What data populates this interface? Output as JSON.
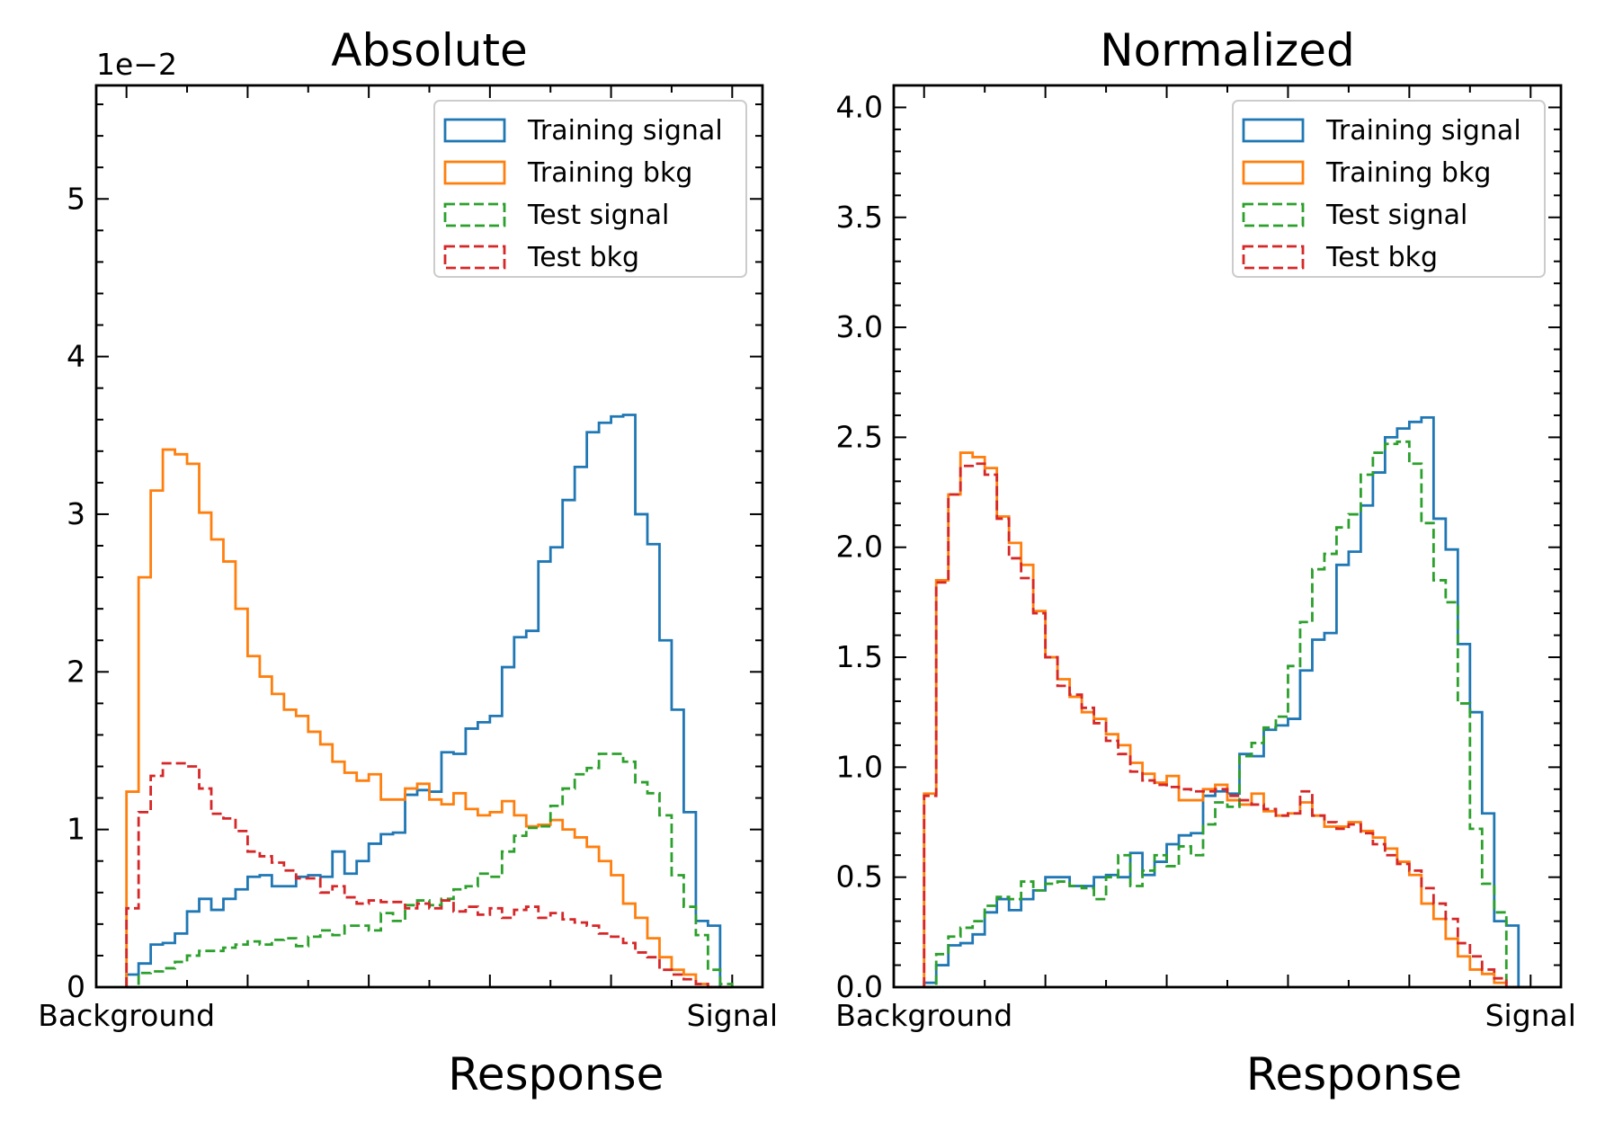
{
  "chart_data": [
    {
      "type": "step",
      "title": "Absolute",
      "xlabel": "Response",
      "xticklabels": [
        "Background",
        "Signal"
      ],
      "ylabel": "",
      "offset_text": "1e−2",
      "yticks": [
        "0",
        "1",
        "2",
        "3",
        "4",
        "5"
      ],
      "ylim": [
        0,
        5.72
      ],
      "xrange": [
        -0.05,
        1.05
      ],
      "nbins": 50,
      "bin_range": [
        0,
        1
      ],
      "legend_position": "top-right",
      "series": [
        {
          "name": "Training signal",
          "color": "#1f77b4",
          "dashed": false,
          "values": [
            0.08,
            0.15,
            0.27,
            0.28,
            0.34,
            0.48,
            0.56,
            0.49,
            0.56,
            0.62,
            0.7,
            0.71,
            0.64,
            0.64,
            0.7,
            0.71,
            0.7,
            0.86,
            0.72,
            0.8,
            0.91,
            0.97,
            0.98,
            1.22,
            1.25,
            1.24,
            1.49,
            1.48,
            1.64,
            1.68,
            1.72,
            2.03,
            2.22,
            2.26,
            2.7,
            2.79,
            3.09,
            3.3,
            3.52,
            3.58,
            3.62,
            3.63,
            3.0,
            2.81,
            2.2,
            1.76,
            1.11,
            0.42,
            0.39,
            0.0
          ]
        },
        {
          "name": "Training bkg",
          "color": "#ff7f0e",
          "dashed": false,
          "values": [
            1.24,
            2.6,
            3.15,
            3.41,
            3.38,
            3.32,
            3.01,
            2.84,
            2.7,
            2.4,
            2.1,
            1.97,
            1.86,
            1.76,
            1.72,
            1.62,
            1.54,
            1.43,
            1.36,
            1.31,
            1.35,
            1.19,
            1.19,
            1.26,
            1.29,
            1.19,
            1.16,
            1.23,
            1.13,
            1.09,
            1.11,
            1.18,
            1.09,
            1.02,
            1.03,
            1.06,
            1.0,
            0.95,
            0.89,
            0.8,
            0.71,
            0.53,
            0.44,
            0.31,
            0.19,
            0.11,
            0.08,
            0.02,
            0.0,
            0.0
          ]
        },
        {
          "name": "Test signal",
          "color": "#2ca02c",
          "dashed": true,
          "values": [
            0.0,
            0.09,
            0.1,
            0.12,
            0.16,
            0.2,
            0.23,
            0.23,
            0.25,
            0.27,
            0.29,
            0.27,
            0.3,
            0.31,
            0.26,
            0.32,
            0.36,
            0.33,
            0.39,
            0.39,
            0.36,
            0.47,
            0.42,
            0.52,
            0.55,
            0.52,
            0.56,
            0.62,
            0.64,
            0.72,
            0.7,
            0.86,
            0.96,
            1.01,
            1.02,
            1.15,
            1.26,
            1.35,
            1.39,
            1.48,
            1.48,
            1.43,
            1.3,
            1.23,
            1.09,
            0.71,
            0.51,
            0.33,
            0.11,
            0.02
          ]
        },
        {
          "name": "Test bkg",
          "color": "#d62728",
          "dashed": true,
          "values": [
            0.5,
            1.11,
            1.34,
            1.42,
            1.42,
            1.4,
            1.26,
            1.1,
            1.07,
            0.99,
            0.86,
            0.83,
            0.79,
            0.74,
            0.69,
            0.69,
            0.6,
            0.64,
            0.57,
            0.53,
            0.55,
            0.54,
            0.54,
            0.5,
            0.53,
            0.5,
            0.55,
            0.48,
            0.51,
            0.46,
            0.5,
            0.44,
            0.49,
            0.51,
            0.44,
            0.47,
            0.43,
            0.41,
            0.39,
            0.34,
            0.32,
            0.28,
            0.22,
            0.19,
            0.11,
            0.08,
            0.05,
            0.02,
            0.0,
            0.0
          ]
        }
      ]
    },
    {
      "type": "step",
      "title": "Normalized",
      "xlabel": "Response",
      "xticklabels": [
        "Background",
        "Signal"
      ],
      "ylabel": "",
      "offset_text": "",
      "yticks": [
        "0.0",
        "0.5",
        "1.0",
        "1.5",
        "2.0",
        "2.5",
        "3.0",
        "3.5",
        "4.0"
      ],
      "ylim": [
        0,
        4.1
      ],
      "xrange": [
        -0.05,
        1.05
      ],
      "nbins": 50,
      "bin_range": [
        0,
        1
      ],
      "legend_position": "top-right",
      "series": [
        {
          "name": "Training signal",
          "color": "#1f77b4",
          "dashed": false,
          "values": [
            0.02,
            0.1,
            0.19,
            0.2,
            0.24,
            0.34,
            0.4,
            0.35,
            0.4,
            0.44,
            0.5,
            0.5,
            0.46,
            0.46,
            0.5,
            0.51,
            0.5,
            0.61,
            0.51,
            0.57,
            0.65,
            0.69,
            0.7,
            0.87,
            0.89,
            0.88,
            1.06,
            1.05,
            1.17,
            1.19,
            1.22,
            1.44,
            1.58,
            1.61,
            1.92,
            1.98,
            2.19,
            2.34,
            2.5,
            2.54,
            2.57,
            2.59,
            2.13,
            1.99,
            1.56,
            1.25,
            0.79,
            0.3,
            0.28,
            0.0
          ]
        },
        {
          "name": "Training bkg",
          "color": "#ff7f0e",
          "dashed": false,
          "values": [
            0.88,
            1.85,
            2.24,
            2.43,
            2.41,
            2.36,
            2.14,
            2.02,
            1.92,
            1.71,
            1.5,
            1.4,
            1.32,
            1.25,
            1.22,
            1.15,
            1.1,
            1.02,
            0.97,
            0.93,
            0.96,
            0.85,
            0.85,
            0.9,
            0.92,
            0.85,
            0.83,
            0.88,
            0.8,
            0.78,
            0.79,
            0.84,
            0.78,
            0.73,
            0.73,
            0.75,
            0.71,
            0.68,
            0.63,
            0.57,
            0.51,
            0.38,
            0.31,
            0.22,
            0.14,
            0.08,
            0.06,
            0.02,
            0.0,
            0.0
          ]
        },
        {
          "name": "Test signal",
          "color": "#2ca02c",
          "dashed": true,
          "values": [
            0.0,
            0.15,
            0.23,
            0.27,
            0.3,
            0.37,
            0.41,
            0.4,
            0.48,
            0.44,
            0.47,
            0.48,
            0.46,
            0.45,
            0.4,
            0.5,
            0.6,
            0.46,
            0.53,
            0.6,
            0.55,
            0.64,
            0.6,
            0.74,
            0.84,
            0.82,
            1.05,
            1.11,
            1.18,
            1.23,
            1.46,
            1.66,
            1.9,
            1.97,
            2.09,
            2.15,
            2.33,
            2.43,
            2.47,
            2.48,
            2.38,
            2.11,
            1.85,
            1.75,
            1.29,
            0.72,
            0.47,
            0.34,
            0.0,
            0.0
          ]
        },
        {
          "name": "Test bkg",
          "color": "#d62728",
          "dashed": true,
          "values": [
            0.87,
            1.84,
            2.24,
            2.37,
            2.38,
            2.33,
            2.13,
            1.95,
            1.86,
            1.7,
            1.5,
            1.37,
            1.33,
            1.27,
            1.2,
            1.12,
            1.06,
            0.98,
            0.94,
            0.92,
            0.91,
            0.9,
            0.89,
            0.89,
            0.9,
            0.87,
            0.85,
            0.83,
            0.81,
            0.78,
            0.79,
            0.89,
            0.78,
            0.75,
            0.72,
            0.74,
            0.7,
            0.65,
            0.6,
            0.56,
            0.53,
            0.45,
            0.38,
            0.31,
            0.2,
            0.14,
            0.08,
            0.04,
            0.0,
            0.0
          ]
        }
      ]
    }
  ]
}
